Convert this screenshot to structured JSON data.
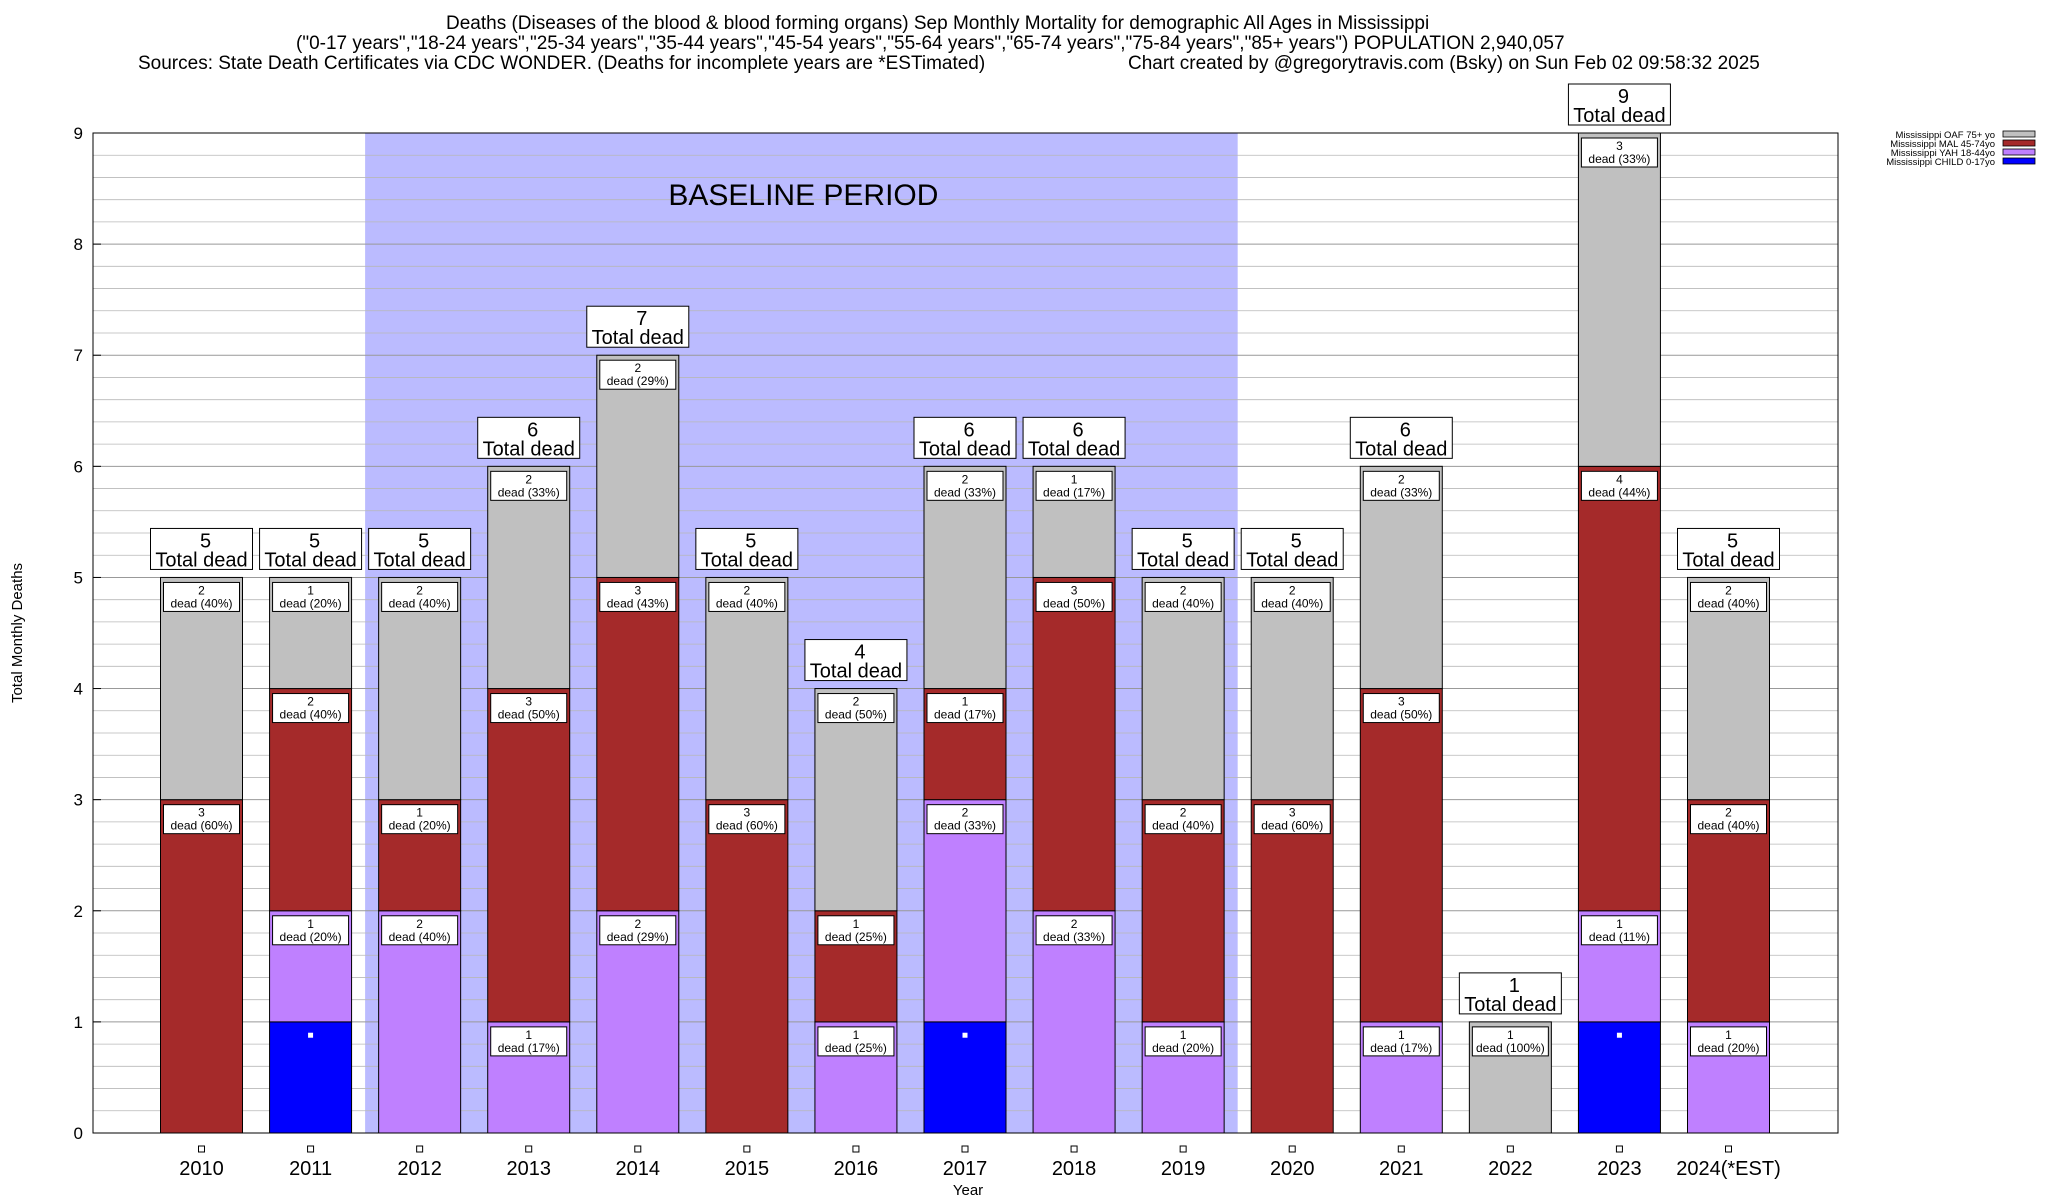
{
  "title_lines": [
    "Deaths (Diseases of the blood & blood forming organs) Sep Monthly Mortality for demographic All Ages in Mississippi",
    "(\"0-17 years\",\"18-24 years\",\"25-34 years\",\"35-44 years\",\"45-54 years\",\"55-64 years\",\"65-74 years\",\"75-84 years\",\"85+ years\") POPULATION 2,940,057",
    "Sources: State Death Certificates via CDC WONDER. (Deaths for incomplete years are *ESTimated)",
    "Chart created by @gregorytravis.com (Bsky) on Sun Feb 02 09:58:32 2025"
  ],
  "chart_data": {
    "type": "bar",
    "stacked": true,
    "xlabel": "Year",
    "ylabel": "Total Monthly Deaths",
    "ylim": [
      0,
      9
    ],
    "yticks": [
      0,
      1,
      2,
      3,
      4,
      5,
      6,
      7,
      8,
      9
    ],
    "grid": "horizontal minor lines",
    "legend_position": "top-right, outside plot",
    "categories": [
      "2010",
      "2011",
      "2012",
      "2013",
      "2014",
      "2015",
      "2016",
      "2017",
      "2018",
      "2019",
      "2020",
      "2021",
      "2022",
      "2023",
      "2024(*EST)"
    ],
    "series": [
      {
        "name": "Mississippi CHILD 0-17yo",
        "color": "#0000ff",
        "values": [
          0,
          1,
          0,
          0,
          0,
          0,
          0,
          1,
          0,
          0,
          0,
          0,
          0,
          1,
          0
        ]
      },
      {
        "name": "Mississippi YAH 18-44yo",
        "color": "#bf80ff",
        "values": [
          0,
          1,
          2,
          1,
          2,
          0,
          1,
          2,
          2,
          1,
          0,
          1,
          0,
          1,
          1
        ]
      },
      {
        "name": "Mississippi MAL 45-74yo",
        "color": "#a52a2a",
        "values": [
          3,
          2,
          1,
          3,
          3,
          3,
          1,
          1,
          3,
          2,
          3,
          3,
          0,
          4,
          2
        ]
      },
      {
        "name": "Mississippi OAF 75+ yo",
        "color": "#c0c0c0",
        "values": [
          2,
          1,
          2,
          2,
          2,
          2,
          2,
          2,
          1,
          2,
          2,
          2,
          1,
          3,
          2
        ]
      }
    ],
    "totals": [
      5,
      5,
      5,
      6,
      7,
      5,
      4,
      6,
      6,
      5,
      5,
      6,
      1,
      9,
      5
    ],
    "segment_labels": [
      [
        null,
        null,
        "3\ndead (60%)",
        "2\ndead (40%)"
      ],
      [
        null,
        "1\ndead (20%)",
        "2\ndead (40%)",
        "1\ndead (20%)"
      ],
      [
        null,
        "2\ndead (40%)",
        "1\ndead (20%)",
        "2\ndead (40%)"
      ],
      [
        null,
        "1\ndead (17%)",
        "3\ndead (50%)",
        "2\ndead (33%)"
      ],
      [
        null,
        "2\ndead (29%)",
        "3\ndead (43%)",
        "2\ndead (29%)"
      ],
      [
        null,
        null,
        "3\ndead (60%)",
        "2\ndead (40%)"
      ],
      [
        null,
        "1\ndead (25%)",
        "1\ndead (25%)",
        "2\ndead (50%)"
      ],
      [
        null,
        "2\ndead (33%)",
        "1\ndead (17%)",
        "2\ndead (33%)"
      ],
      [
        null,
        "2\ndead (33%)",
        "3\ndead (50%)",
        "1\ndead (17%)"
      ],
      [
        null,
        "1\ndead (20%)",
        "2\ndead (40%)",
        "2\ndead (40%)"
      ],
      [
        null,
        null,
        "3\ndead (60%)",
        "2\ndead (40%)"
      ],
      [
        null,
        "1\ndead (17%)",
        "3\ndead (50%)",
        "2\ndead (33%)"
      ],
      [
        null,
        null,
        null,
        "1\ndead (100%)"
      ],
      [
        null,
        "1\ndead (11%)",
        "4\ndead (44%)",
        "3\ndead (33%)"
      ],
      [
        null,
        "1\ndead (20%)",
        "2\ndead (40%)",
        "2\ndead (40%)"
      ]
    ],
    "total_label_suffix": "Total dead",
    "annotations": [
      {
        "text": "BASELINE PERIOD",
        "from_category": "2012",
        "to_category": "2019",
        "color": "#bbbbff"
      }
    ]
  }
}
